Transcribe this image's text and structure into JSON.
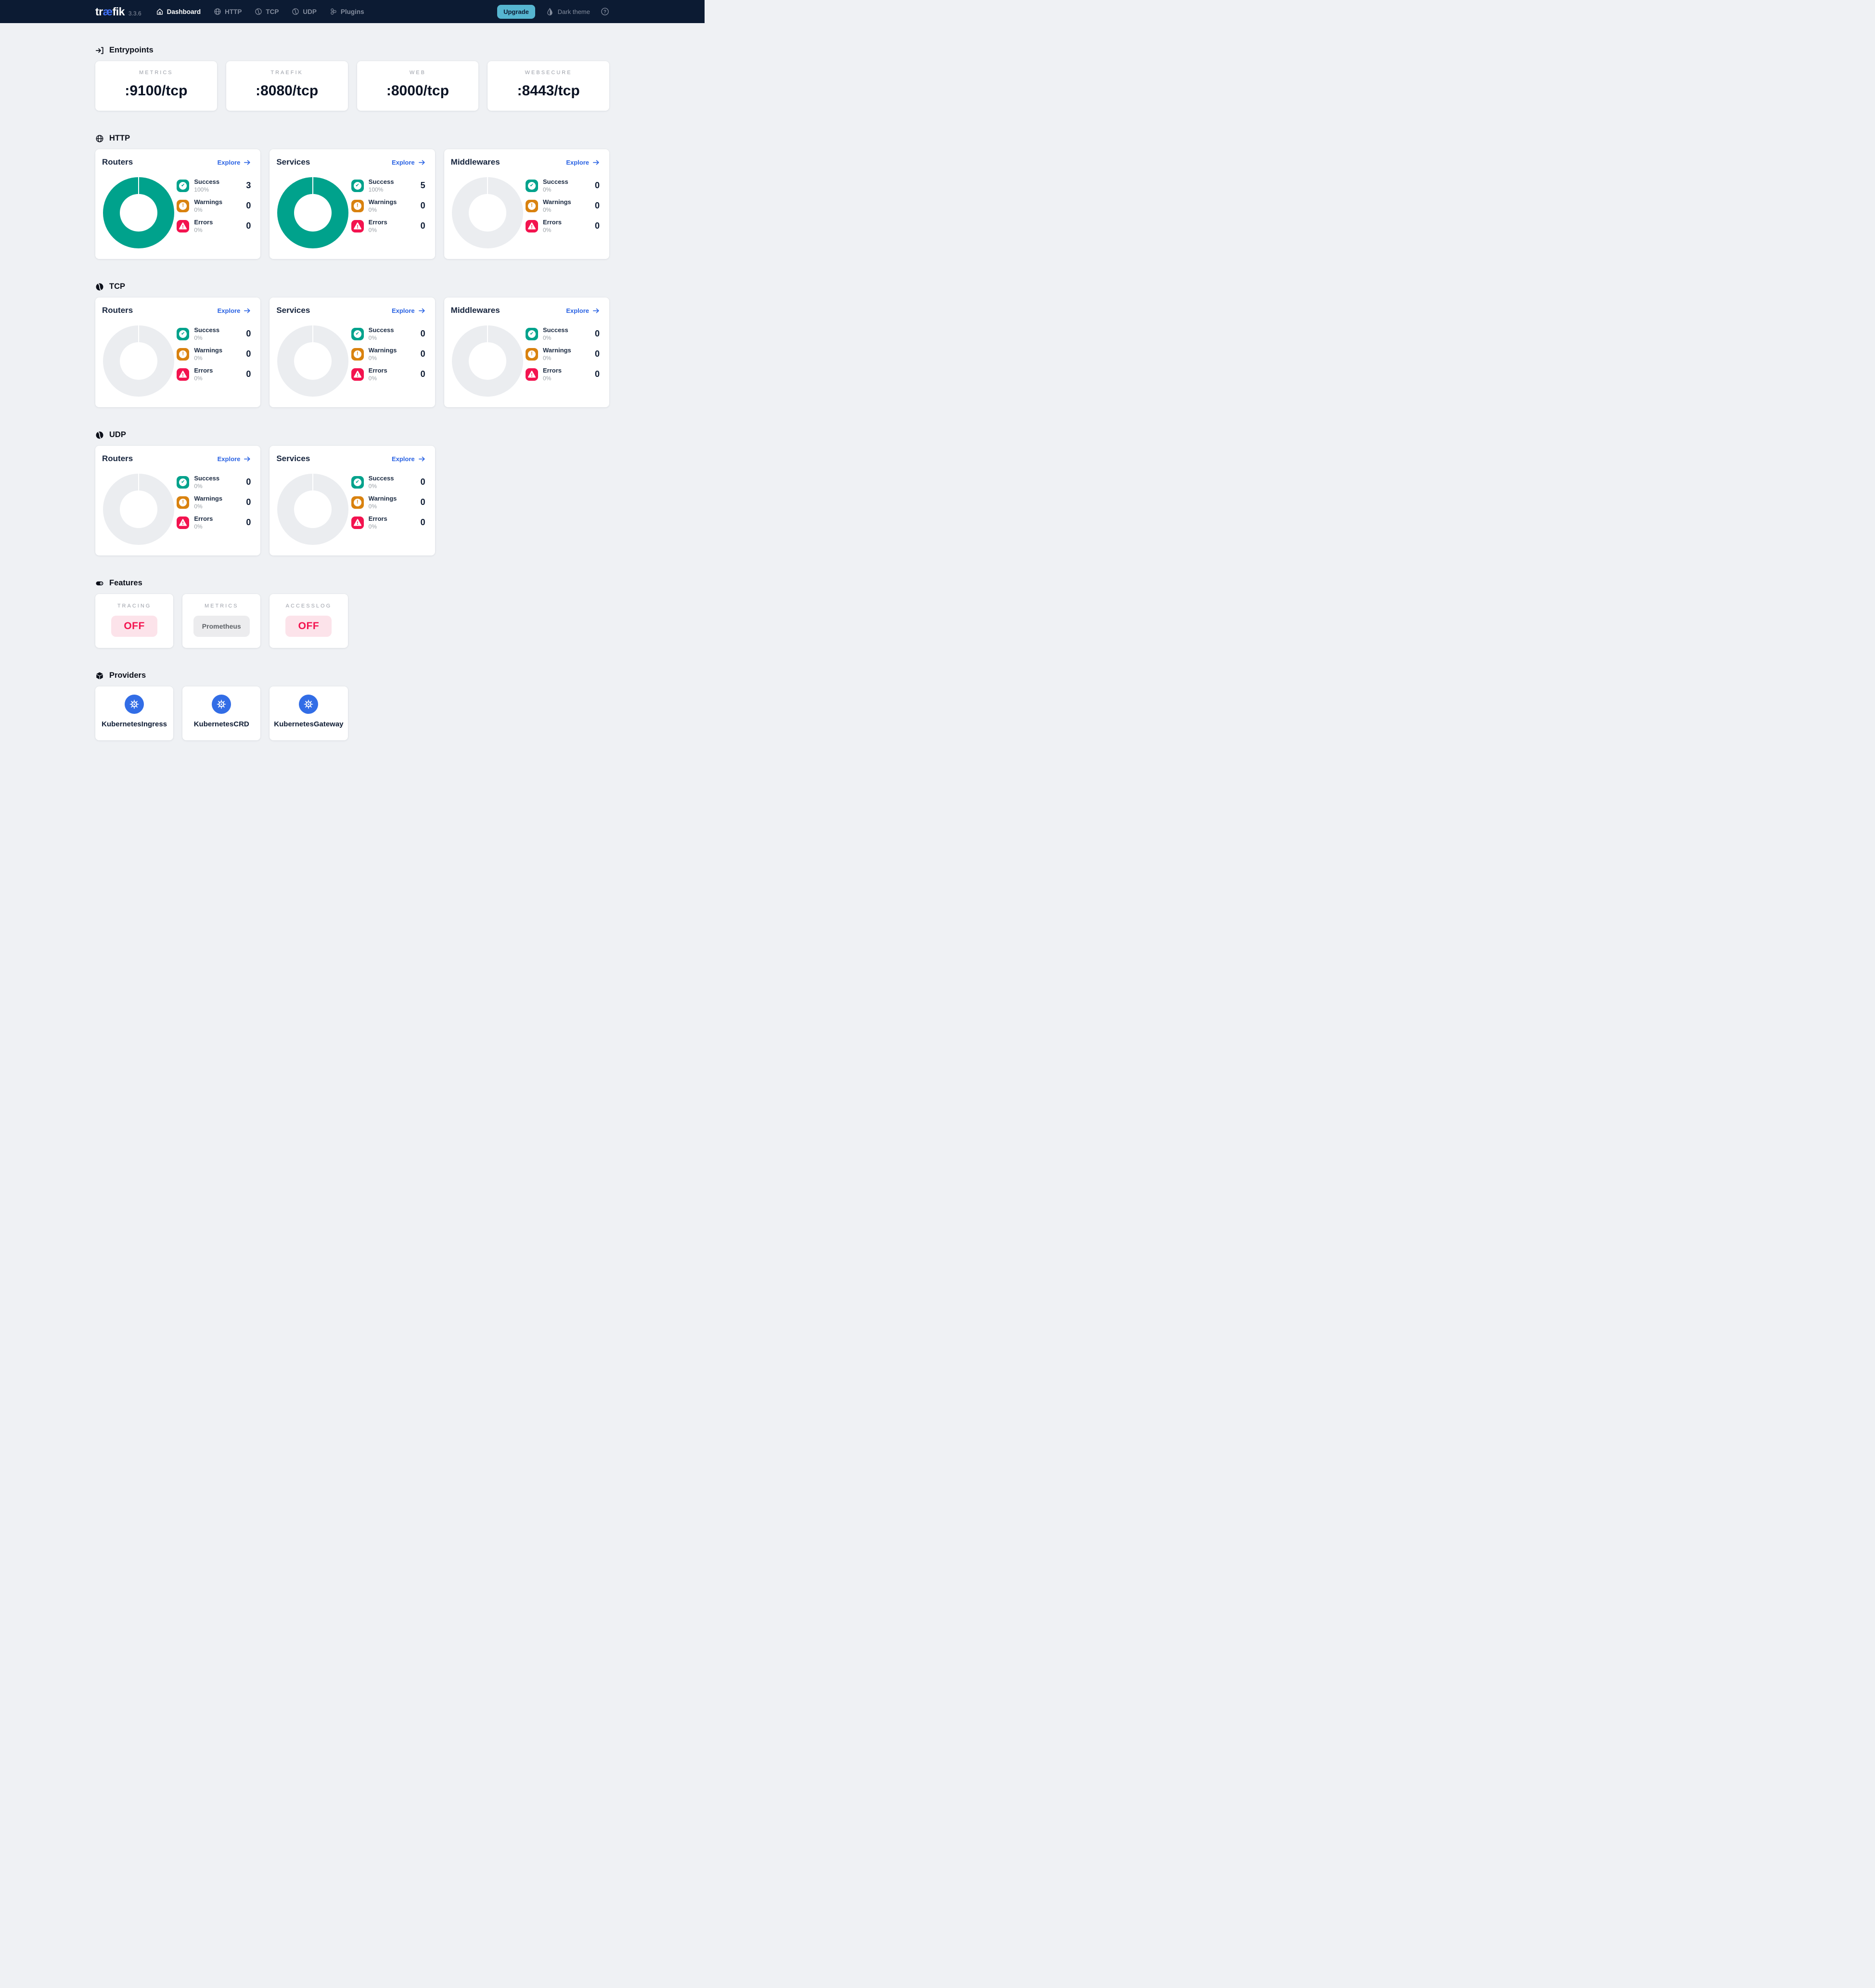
{
  "navbar": {
    "logo_pre": "tr",
    "logo_mid": "æ",
    "logo_post": "fik",
    "version": "3.3.6",
    "items": [
      {
        "label": "Dashboard",
        "active": true
      },
      {
        "label": "HTTP",
        "active": false
      },
      {
        "label": "TCP",
        "active": false
      },
      {
        "label": "UDP",
        "active": false
      },
      {
        "label": "Plugins",
        "active": false
      }
    ],
    "upgrade_label": "Upgrade",
    "theme_label": "Dark theme"
  },
  "entrypoints": {
    "title": "Entrypoints",
    "cards": [
      {
        "label": "METRICS",
        "value": ":9100/tcp"
      },
      {
        "label": "TRAEFIK",
        "value": ":8080/tcp"
      },
      {
        "label": "WEB",
        "value": ":8000/tcp"
      },
      {
        "label": "WEBSECURE",
        "value": ":8443/tcp"
      }
    ]
  },
  "http": {
    "title": "HTTP",
    "cards": [
      {
        "title": "Routers",
        "explore": "Explore",
        "donut": "filled",
        "stats": [
          {
            "label": "Success",
            "pct": "100%",
            "value": "3"
          },
          {
            "label": "Warnings",
            "pct": "0%",
            "value": "0"
          },
          {
            "label": "Errors",
            "pct": "0%",
            "value": "0"
          }
        ]
      },
      {
        "title": "Services",
        "explore": "Explore",
        "donut": "filled",
        "stats": [
          {
            "label": "Success",
            "pct": "100%",
            "value": "5"
          },
          {
            "label": "Warnings",
            "pct": "0%",
            "value": "0"
          },
          {
            "label": "Errors",
            "pct": "0%",
            "value": "0"
          }
        ]
      },
      {
        "title": "Middlewares",
        "explore": "Explore",
        "donut": "empty",
        "stats": [
          {
            "label": "Success",
            "pct": "0%",
            "value": "0"
          },
          {
            "label": "Warnings",
            "pct": "0%",
            "value": "0"
          },
          {
            "label": "Errors",
            "pct": "0%",
            "value": "0"
          }
        ]
      }
    ]
  },
  "tcp": {
    "title": "TCP",
    "cards": [
      {
        "title": "Routers",
        "explore": "Explore",
        "donut": "empty",
        "stats": [
          {
            "label": "Success",
            "pct": "0%",
            "value": "0"
          },
          {
            "label": "Warnings",
            "pct": "0%",
            "value": "0"
          },
          {
            "label": "Errors",
            "pct": "0%",
            "value": "0"
          }
        ]
      },
      {
        "title": "Services",
        "explore": "Explore",
        "donut": "empty",
        "stats": [
          {
            "label": "Success",
            "pct": "0%",
            "value": "0"
          },
          {
            "label": "Warnings",
            "pct": "0%",
            "value": "0"
          },
          {
            "label": "Errors",
            "pct": "0%",
            "value": "0"
          }
        ]
      },
      {
        "title": "Middlewares",
        "explore": "Explore",
        "donut": "empty",
        "stats": [
          {
            "label": "Success",
            "pct": "0%",
            "value": "0"
          },
          {
            "label": "Warnings",
            "pct": "0%",
            "value": "0"
          },
          {
            "label": "Errors",
            "pct": "0%",
            "value": "0"
          }
        ]
      }
    ]
  },
  "udp": {
    "title": "UDP",
    "cards": [
      {
        "title": "Routers",
        "explore": "Explore",
        "donut": "empty",
        "stats": [
          {
            "label": "Success",
            "pct": "0%",
            "value": "0"
          },
          {
            "label": "Warnings",
            "pct": "0%",
            "value": "0"
          },
          {
            "label": "Errors",
            "pct": "0%",
            "value": "0"
          }
        ]
      },
      {
        "title": "Services",
        "explore": "Explore",
        "donut": "empty",
        "stats": [
          {
            "label": "Success",
            "pct": "0%",
            "value": "0"
          },
          {
            "label": "Warnings",
            "pct": "0%",
            "value": "0"
          },
          {
            "label": "Errors",
            "pct": "0%",
            "value": "0"
          }
        ]
      }
    ]
  },
  "features": {
    "title": "Features",
    "cards": [
      {
        "label": "TRACING",
        "value": "OFF",
        "state": "off"
      },
      {
        "label": "METRICS",
        "value": "Prometheus",
        "state": "neutral"
      },
      {
        "label": "ACCESSLOG",
        "value": "OFF",
        "state": "off"
      }
    ]
  },
  "providers": {
    "title": "Providers",
    "cards": [
      {
        "label": "KubernetesIngress"
      },
      {
        "label": "KubernetesCRD"
      },
      {
        "label": "KubernetesGateway"
      }
    ]
  },
  "icons": {
    "nav": [
      "home-icon",
      "globe-icon",
      "pipe-icon",
      "pipe-icon",
      "plugins-icon"
    ],
    "sections": {
      "entrypoints": "arrow-into-bracket-icon",
      "http": "globe-icon",
      "tcp": "pipe-icon",
      "udp": "pipe-icon",
      "features": "toggle-icon",
      "providers": "cube-icon"
    },
    "stats": [
      "check-icon",
      "exclamation-icon",
      "warning-triangle-icon"
    ],
    "provider_logo": "kubernetes-icon",
    "theme": "droplet-icon",
    "help": "question-icon"
  },
  "colors": {
    "navbar_bg": "#0c1b33",
    "page_bg": "#eff1f4",
    "success_teal": "#00a28c",
    "warning_orange": "#d9820f",
    "error_red": "#f3134f",
    "link_blue": "#2962e3",
    "upgrade_cyan": "#56b6d1",
    "kubernetes_blue": "#326de6",
    "logo_accent": "#4170f4",
    "empty_donut": "#ebedf0"
  }
}
